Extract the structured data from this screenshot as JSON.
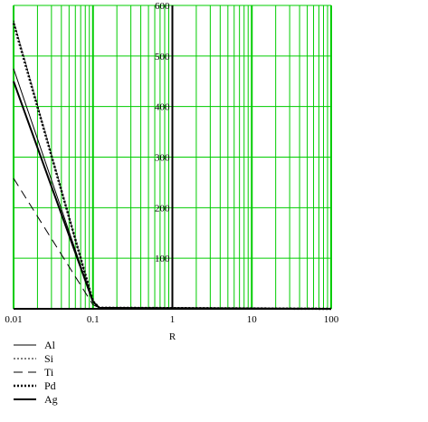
{
  "chart_data": {
    "type": "line",
    "title": "",
    "xlabel": "R",
    "ylabel": "",
    "x_scale": "log",
    "xlim": [
      0.01,
      100
    ],
    "ylim": [
      0,
      600
    ],
    "grid": true,
    "grid_color": "#00cc00",
    "x_ticks": [
      "0.01",
      "0.1",
      "1",
      "10",
      "100"
    ],
    "y_ticks": [
      "100",
      "200",
      "300",
      "400",
      "500",
      "600"
    ],
    "legend_position": "bottom-left",
    "series": [
      {
        "name": "Al",
        "style": "solid-thin",
        "x": [
          0.01,
          0.1,
          0.12,
          100
        ],
        "y": [
          475,
          14,
          2,
          0
        ]
      },
      {
        "name": "Si",
        "style": "dotted-thin",
        "x": [
          0.01,
          0.1,
          0.12,
          100
        ],
        "y": [
          570,
          14,
          2,
          0
        ]
      },
      {
        "name": "Ti",
        "style": "dashed-thin",
        "x": [
          0.01,
          0.1,
          0.12,
          100
        ],
        "y": [
          258,
          8,
          2,
          0
        ]
      },
      {
        "name": "Pd",
        "style": "dotted-thick",
        "x": [
          0.01,
          0.1,
          0.12,
          100
        ],
        "y": [
          565,
          15,
          2,
          0
        ]
      },
      {
        "name": "Ag",
        "style": "solid-thick",
        "x": [
          0.01,
          0.1,
          0.12,
          100
        ],
        "y": [
          450,
          14,
          2,
          0
        ]
      }
    ]
  }
}
